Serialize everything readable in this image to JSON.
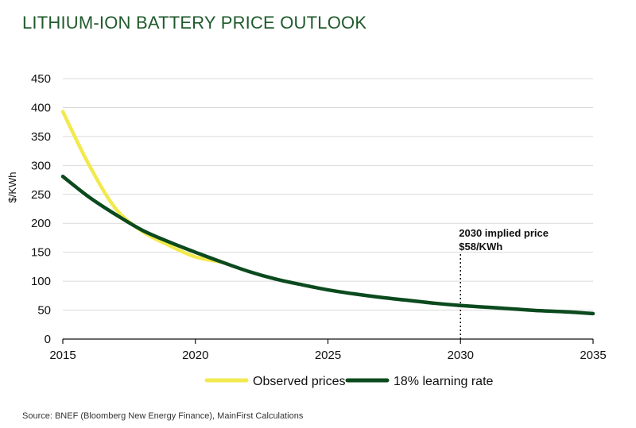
{
  "colors": {
    "title": "#1f5a2c",
    "observed": "#f2e94e",
    "learning": "#0b4a1e",
    "grid": "#d9d9d9",
    "axis": "#111111"
  },
  "chart_data": {
    "type": "line",
    "title": "LITHIUM-ION BATTERY PRICE OUTLOOK",
    "ylabel": "$/KWh",
    "xlabel": "",
    "xlim": [
      2015,
      2035
    ],
    "ylim": [
      0,
      450
    ],
    "x_ticks": [
      2015,
      2020,
      2025,
      2030,
      2035
    ],
    "y_ticks": [
      0,
      50,
      100,
      150,
      200,
      250,
      300,
      350,
      400,
      450
    ],
    "grid": "horizontal",
    "legend_position": "bottom",
    "series": [
      {
        "name": "Observed prices",
        "x": [
          2015,
          2016,
          2017,
          2018,
          2019,
          2020,
          2021
        ],
        "y": [
          393,
          300,
          225,
          186,
          162,
          142,
          133
        ]
      },
      {
        "name": "18% learning rate",
        "x": [
          2015,
          2016,
          2017,
          2018,
          2019,
          2020,
          2021,
          2022,
          2023,
          2024,
          2025,
          2026,
          2027,
          2028,
          2029,
          2030,
          2031,
          2032,
          2033,
          2034,
          2035
        ],
        "y": [
          281,
          245,
          215,
          188,
          168,
          150,
          133,
          117,
          104,
          94,
          85,
          78,
          72,
          67,
          62,
          58,
          55,
          52,
          49,
          47,
          44
        ]
      }
    ],
    "annotation": {
      "x": 2030,
      "lines": [
        "2030 implied price",
        "$58/KWh"
      ]
    }
  },
  "source": "Source: BNEF (Bloomberg New Energy Finance), MainFirst Calculations"
}
